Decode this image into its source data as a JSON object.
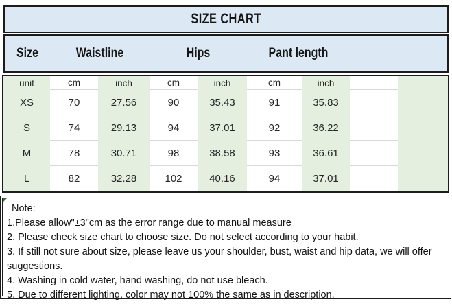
{
  "title": "SIZE CHART",
  "header": {
    "size": "Size",
    "waistline": "Waistline",
    "hips": "Hips",
    "pant_length": "Pant length"
  },
  "table": {
    "rows": [
      [
        "unit",
        "cm",
        "inch",
        "cm",
        "inch",
        "cm",
        "inch",
        "",
        ""
      ],
      [
        "XS",
        "70",
        "27.56",
        "90",
        "35.43",
        "91",
        "35.83",
        "",
        ""
      ],
      [
        "S",
        "74",
        "29.13",
        "94",
        "37.01",
        "92",
        "36.22",
        "",
        ""
      ],
      [
        "M",
        "78",
        "30.71",
        "98",
        "38.58",
        "93",
        "36.61",
        "",
        ""
      ],
      [
        "L",
        "82",
        "32.28",
        "102",
        "40.16",
        "94",
        "37.01",
        "",
        ""
      ]
    ]
  },
  "note": {
    "title": "Note:",
    "lines": [
      "1.Please allow\"±3\"cm as the error range due to manual measure",
      "2. Please check size chart to choose size. Do not select according to your habit.",
      "3. If still not sure about size, please leave us your shoulder, bust, waist and hip data, we will offer suggestions.",
      "4. Washing in cold water, hand washing, do not use bleach.",
      "5. Due to different lighting, color may not 100% the same as in description."
    ]
  },
  "colors": {
    "header_blue": "#dce9f5",
    "stripe_green": "#e4efdf",
    "frame_dark": "#1c1c1c",
    "gridline_gray": "#d9d9d9"
  }
}
